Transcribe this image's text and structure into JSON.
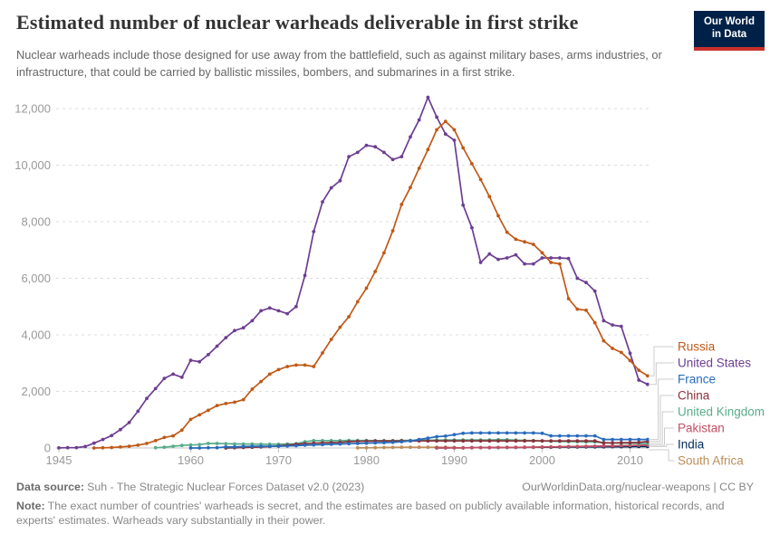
{
  "header": {
    "title": "Estimated number of nuclear warheads deliverable in first strike",
    "subtitle": "Nuclear warheads include those designed for use away from the battlefield, such as against military bases, arms industries, or infrastructure, that could be carried by ballistic missiles, bombers, and submarines in a first strike.",
    "logo": {
      "line1": "Our World",
      "line2": "in Data",
      "bg_color": "#002147",
      "accent_color": "#C7302B"
    }
  },
  "chart_data": {
    "type": "line",
    "title": "Estimated number of nuclear warheads deliverable in first strike",
    "xlabel": "",
    "ylabel": "",
    "x_range": [
      1945,
      2012
    ],
    "ylim": [
      0,
      12400
    ],
    "x_ticks": [
      1945,
      1960,
      1970,
      1980,
      1990,
      2000,
      2010
    ],
    "y_ticks": [
      0,
      2000,
      4000,
      6000,
      8000,
      10000,
      12000
    ],
    "y_tick_labels": [
      "0",
      "2,000",
      "4,000",
      "6,000",
      "8,000",
      "10,000",
      "12,000"
    ],
    "grid": "horizontal-dashed",
    "legend_position": "right",
    "series": [
      {
        "name": "Russia",
        "color": "#C05917",
        "start_year": 1949,
        "values": [
          1,
          5,
          15,
          35,
          60,
          100,
          160,
          260,
          370,
          430,
          630,
          1010,
          1170,
          1330,
          1500,
          1570,
          1620,
          1710,
          2080,
          2350,
          2610,
          2770,
          2880,
          2930,
          2930,
          2880,
          3360,
          3840,
          4270,
          4640,
          5170,
          5650,
          6240,
          6900,
          7680,
          8610,
          9210,
          9890,
          10550,
          11250,
          11550,
          11250,
          10610,
          10050,
          9490,
          8890,
          8210,
          7630,
          7380,
          7290,
          7200,
          6900,
          6560,
          6510,
          5280,
          4910,
          4870,
          4430,
          3790,
          3520,
          3380,
          3090,
          2750,
          2550
        ]
      },
      {
        "name": "United States",
        "color": "#6D3E91",
        "start_year": 1945,
        "values": [
          2,
          9,
          13,
          50,
          170,
          300,
          440,
          650,
          900,
          1300,
          1750,
          2100,
          2460,
          2610,
          2500,
          3100,
          3050,
          3300,
          3600,
          3900,
          4150,
          4250,
          4500,
          4850,
          4950,
          4850,
          4750,
          5000,
          6100,
          7650,
          8700,
          9200,
          9450,
          10300,
          10450,
          10700,
          10650,
          10450,
          10200,
          10300,
          11000,
          11600,
          12400,
          11700,
          11100,
          10880,
          8590,
          7790,
          6560,
          6860,
          6670,
          6720,
          6830,
          6510,
          6510,
          6720,
          6720,
          6720,
          6700,
          6000,
          5850,
          5550,
          4500,
          4350,
          4300,
          3350,
          2400,
          2250
        ]
      },
      {
        "name": "France",
        "color": "#286BBB",
        "start_year": 1960,
        "values": [
          0,
          0,
          5,
          10,
          35,
          40,
          50,
          60,
          60,
          60,
          60,
          70,
          80,
          100,
          110,
          120,
          130,
          140,
          150,
          160,
          170,
          180,
          190,
          200,
          220,
          250,
          300,
          350,
          400,
          420,
          470,
          520,
          530,
          530,
          530,
          530,
          530,
          530,
          530,
          530,
          520,
          430,
          430,
          430,
          430,
          430,
          430,
          300,
          300,
          300,
          300,
          300,
          300
        ]
      },
      {
        "name": "China",
        "color": "#883039",
        "start_year": 1964,
        "values": [
          1,
          5,
          15,
          25,
          35,
          50,
          75,
          100,
          130,
          150,
          170,
          180,
          190,
          200,
          220,
          235,
          240,
          245,
          245,
          245,
          250,
          250,
          250,
          250,
          250,
          250,
          250,
          250,
          250,
          250,
          250,
          250,
          250,
          250,
          250,
          250,
          250,
          250,
          250,
          250,
          250,
          250,
          250,
          180,
          180,
          185,
          190,
          200,
          230
        ]
      },
      {
        "name": "United Kingdom",
        "color": "#58AC8C",
        "start_year": 1956,
        "values": [
          10,
          25,
          60,
          90,
          105,
          120,
          160,
          160,
          150,
          145,
          140,
          140,
          130,
          130,
          130,
          140,
          150,
          220,
          260,
          260,
          260,
          260,
          265,
          265,
          265,
          260,
          260,
          260,
          265,
          270,
          270,
          280,
          280,
          285,
          285,
          285,
          285,
          285,
          285,
          290,
          290,
          280,
          270,
          260,
          250,
          240,
          230,
          225,
          220,
          215,
          210,
          190,
          175,
          170,
          165,
          160,
          160
        ]
      },
      {
        "name": "Pakistan",
        "color": "#C15065",
        "start_year": 1988,
        "values": [
          2,
          4,
          6,
          8,
          10,
          12,
          15,
          18,
          20,
          22,
          25,
          30,
          35,
          40,
          45,
          50,
          55,
          60,
          65,
          70,
          75,
          80,
          85,
          95,
          100
        ]
      },
      {
        "name": "India",
        "color": "#00295B",
        "start_year": 1988,
        "values": [
          2,
          4,
          6,
          8,
          10,
          12,
          14,
          16,
          18,
          20,
          22,
          25,
          28,
          30,
          32,
          34,
          36,
          38,
          40,
          42,
          44,
          46,
          48,
          50,
          50
        ]
      },
      {
        "name": "South Africa",
        "color": "#BC8E5A",
        "start_year": 1979,
        "values": [
          2,
          5,
          10,
          15,
          20,
          25,
          25,
          25,
          25,
          25,
          25,
          12,
          0
        ]
      }
    ]
  },
  "footer": {
    "source_label": "Data source:",
    "source_text": "Suh - The Strategic Nuclear Forces Dataset v2.0 (2023)",
    "link_text": "OurWorldinData.org/nuclear-weapons | CC BY",
    "note_label": "Note:",
    "note_text": "The exact number of countries' warheads is secret, and the estimates are based on publicly available information, historical records, and experts' estimates. Warheads vary substantially in their power."
  }
}
